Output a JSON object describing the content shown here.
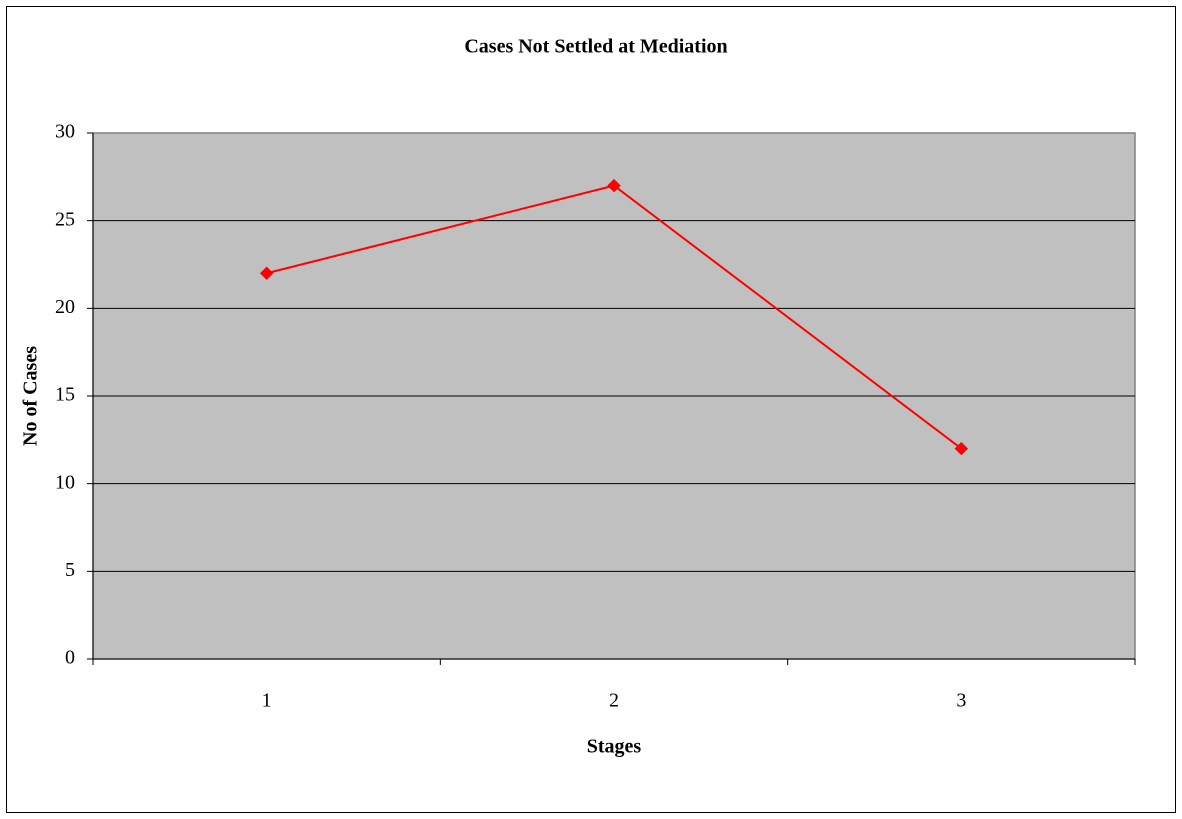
{
  "chart_data": {
    "type": "line",
    "title": "Cases Not Settled at Mediation",
    "x_label": "Stages",
    "y_label": "No of Cases",
    "categories": [
      "1",
      "2",
      "3"
    ],
    "values": [
      22,
      27,
      12
    ],
    "color": "#ff0000",
    "ylim": [
      0,
      30
    ],
    "yticks": [
      0,
      5,
      10,
      15,
      20,
      25,
      30
    ],
    "grid": true
  }
}
